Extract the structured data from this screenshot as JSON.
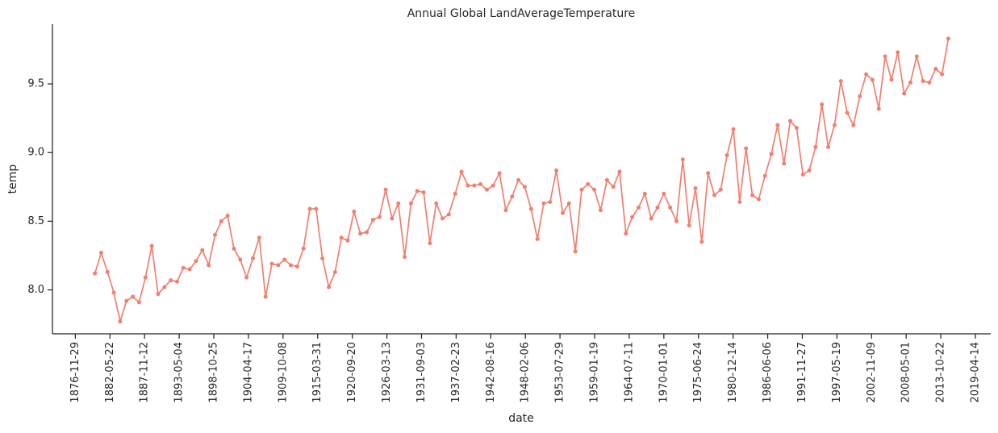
{
  "chart_data": {
    "type": "line",
    "title": "Annual Global LandAverageTemperature",
    "xlabel": "date",
    "ylabel": "temp",
    "x": [
      "1880-01-01",
      "1881-01-01",
      "1882-01-01",
      "1883-01-01",
      "1884-01-01",
      "1885-01-01",
      "1886-01-01",
      "1887-01-01",
      "1888-01-01",
      "1889-01-01",
      "1890-01-01",
      "1891-01-01",
      "1892-01-01",
      "1893-01-01",
      "1894-01-01",
      "1895-01-01",
      "1896-01-01",
      "1897-01-01",
      "1898-01-01",
      "1899-01-01",
      "1900-01-01",
      "1901-01-01",
      "1902-01-01",
      "1903-01-01",
      "1904-01-01",
      "1905-01-01",
      "1906-01-01",
      "1907-01-01",
      "1908-01-01",
      "1909-01-01",
      "1910-01-01",
      "1911-01-01",
      "1912-01-01",
      "1913-01-01",
      "1914-01-01",
      "1915-01-01",
      "1916-01-01",
      "1917-01-01",
      "1918-01-01",
      "1919-01-01",
      "1920-01-01",
      "1921-01-01",
      "1922-01-01",
      "1923-01-01",
      "1924-01-01",
      "1925-01-01",
      "1926-01-01",
      "1927-01-01",
      "1928-01-01",
      "1929-01-01",
      "1930-01-01",
      "1931-01-01",
      "1932-01-01",
      "1933-01-01",
      "1934-01-01",
      "1935-01-01",
      "1936-01-01",
      "1937-01-01",
      "1938-01-01",
      "1939-01-01",
      "1940-01-01",
      "1941-01-01",
      "1942-01-01",
      "1943-01-01",
      "1944-01-01",
      "1945-01-01",
      "1946-01-01",
      "1947-01-01",
      "1948-01-01",
      "1949-01-01",
      "1950-01-01",
      "1951-01-01",
      "1952-01-01",
      "1953-01-01",
      "1954-01-01",
      "1955-01-01",
      "1956-01-01",
      "1957-01-01",
      "1958-01-01",
      "1959-01-01",
      "1960-01-01",
      "1961-01-01",
      "1962-01-01",
      "1963-01-01",
      "1964-01-01",
      "1965-01-01",
      "1966-01-01",
      "1967-01-01",
      "1968-01-01",
      "1969-01-01",
      "1970-01-01",
      "1971-01-01",
      "1972-01-01",
      "1973-01-01",
      "1974-01-01",
      "1975-01-01",
      "1976-01-01",
      "1977-01-01",
      "1978-01-01",
      "1979-01-01",
      "1980-01-01",
      "1981-01-01",
      "1982-01-01",
      "1983-01-01",
      "1984-01-01",
      "1985-01-01",
      "1986-01-01",
      "1987-01-01",
      "1988-01-01",
      "1989-01-01",
      "1990-01-01",
      "1991-01-01",
      "1992-01-01",
      "1993-01-01",
      "1994-01-01",
      "1995-01-01",
      "1996-01-01",
      "1997-01-01",
      "1998-01-01",
      "1999-01-01",
      "2000-01-01",
      "2001-01-01",
      "2002-01-01",
      "2003-01-01",
      "2004-01-01",
      "2005-01-01",
      "2006-01-01",
      "2007-01-01",
      "2008-01-01",
      "2009-01-01",
      "2010-01-01",
      "2011-01-01",
      "2012-01-01",
      "2013-01-01",
      "2014-01-01",
      "2015-01-01"
    ],
    "series": [
      {
        "name": "temp",
        "color": "#f08070",
        "values": [
          8.12,
          8.27,
          8.13,
          7.98,
          7.77,
          7.92,
          7.95,
          7.91,
          8.09,
          8.32,
          7.97,
          8.02,
          8.07,
          8.06,
          8.16,
          8.15,
          8.21,
          8.29,
          8.18,
          8.4,
          8.5,
          8.54,
          8.3,
          8.22,
          8.09,
          8.23,
          8.38,
          7.95,
          8.19,
          8.18,
          8.22,
          8.18,
          8.17,
          8.3,
          8.59,
          8.59,
          8.23,
          8.02,
          8.13,
          8.38,
          8.36,
          8.57,
          8.41,
          8.42,
          8.51,
          8.53,
          8.73,
          8.52,
          8.63,
          8.24,
          8.63,
          8.72,
          8.71,
          8.34,
          8.63,
          8.52,
          8.55,
          8.7,
          8.86,
          8.76,
          8.76,
          8.77,
          8.73,
          8.76,
          8.85,
          8.58,
          8.68,
          8.8,
          8.75,
          8.59,
          8.37,
          8.63,
          8.64,
          8.87,
          8.56,
          8.63,
          8.28,
          8.73,
          8.77,
          8.73,
          8.58,
          8.8,
          8.75,
          8.86,
          8.41,
          8.53,
          8.6,
          8.7,
          8.52,
          8.6,
          8.7,
          8.6,
          8.5,
          8.95,
          8.47,
          8.74,
          8.35,
          8.85,
          8.69,
          8.73,
          8.98,
          9.17,
          8.64,
          9.03,
          8.69,
          8.66,
          8.83,
          8.99,
          9.2,
          8.92,
          9.23,
          9.18,
          8.84,
          8.87,
          9.04,
          9.35,
          9.04,
          9.2,
          9.52,
          9.29,
          9.2,
          9.41,
          9.57,
          9.53,
          9.32,
          9.7,
          9.53,
          9.73,
          9.43,
          9.51,
          9.7,
          9.52,
          9.51,
          9.61,
          9.57,
          9.83
        ]
      }
    ],
    "xlim": [
      "1873-04-16",
      "2021-09-16"
    ],
    "xticks": [
      "1876-11-29",
      "1882-05-22",
      "1887-11-12",
      "1893-05-04",
      "1898-10-25",
      "1904-04-17",
      "1909-10-08",
      "1915-03-31",
      "1920-09-20",
      "1926-03-13",
      "1931-09-03",
      "1937-02-23",
      "1942-08-16",
      "1948-02-06",
      "1953-07-29",
      "1959-01-19",
      "1964-07-11",
      "1970-01-01",
      "1975-06-24",
      "1980-12-14",
      "1986-06-06",
      "1991-11-27",
      "1997-05-19",
      "2002-11-09",
      "2008-05-01",
      "2013-10-22",
      "2019-04-14"
    ],
    "ylim": [
      7.68,
      9.935
    ],
    "yticks": [
      {
        "value": 8,
        "label": "8.0"
      },
      {
        "value": 8.5,
        "label": "8.5"
      },
      {
        "value": 9,
        "label": "9.0"
      },
      {
        "value": 9.5,
        "label": "9.5"
      }
    ],
    "grid": false,
    "markers": true
  }
}
